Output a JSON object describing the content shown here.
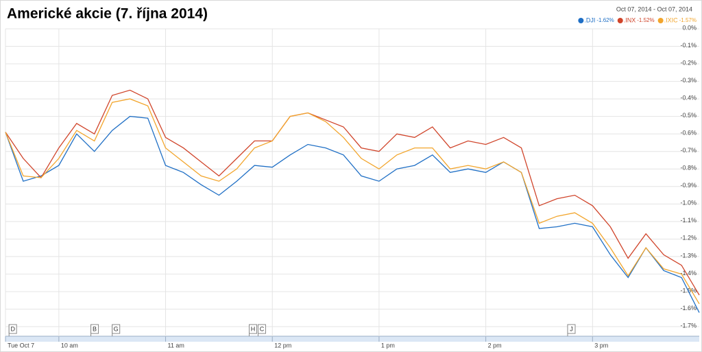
{
  "chart_data": {
    "type": "line",
    "title": "Americké akcie (7. října 2014)",
    "subtitle": "Oct 07, 2014  -  Oct 07, 2014",
    "x": [
      570,
      580,
      590,
      600,
      610,
      620,
      630,
      640,
      650,
      660,
      670,
      680,
      690,
      700,
      710,
      720,
      730,
      740,
      750,
      760,
      770,
      780,
      790,
      800,
      810,
      820,
      830,
      840,
      850,
      860,
      870,
      880,
      890,
      900,
      910,
      920,
      930,
      940,
      950,
      960
    ],
    "xlim": [
      570,
      960
    ],
    "xticks": [
      {
        "value": 570,
        "label": "Tue Oct 7"
      },
      {
        "value": 600,
        "label": "10 am"
      },
      {
        "value": 660,
        "label": "11 am"
      },
      {
        "value": 720,
        "label": "12 pm"
      },
      {
        "value": 780,
        "label": "1 pm"
      },
      {
        "value": 840,
        "label": "2 pm"
      },
      {
        "value": 900,
        "label": "3 pm"
      }
    ],
    "ylim": [
      0,
      -1.7
    ],
    "yticks": [
      {
        "value": 0,
        "label": "0.0%"
      },
      {
        "value": -0.1,
        "label": "-0.1%"
      },
      {
        "value": -0.2,
        "label": "-0.2%"
      },
      {
        "value": -0.3,
        "label": "-0.3%"
      },
      {
        "value": -0.4,
        "label": "-0.4%"
      },
      {
        "value": -0.5,
        "label": "-0.5%"
      },
      {
        "value": -0.6,
        "label": "-0.6%"
      },
      {
        "value": -0.7,
        "label": "-0.7%"
      },
      {
        "value": -0.8,
        "label": "-0.8%"
      },
      {
        "value": -0.9,
        "label": "-0.9%"
      },
      {
        "value": -1.0,
        "label": "-1.0%"
      },
      {
        "value": -1.1,
        "label": "-1.1%"
      },
      {
        "value": -1.2,
        "label": "-1.2%"
      },
      {
        "value": -1.3,
        "label": "-1.3%"
      },
      {
        "value": -1.4,
        "label": "-1.4%"
      },
      {
        "value": -1.5,
        "label": "-1.5%"
      },
      {
        "value": -1.6,
        "label": "-1.6%"
      },
      {
        "value": -1.7,
        "label": "-1.7%"
      }
    ],
    "grid": true,
    "series": [
      {
        "name": ".DJI",
        "change": "-1.62%",
        "color": "#1f6fc5",
        "values": [
          -0.59,
          -0.87,
          -0.84,
          -0.78,
          -0.6,
          -0.7,
          -0.58,
          -0.5,
          -0.51,
          -0.78,
          -0.82,
          -0.89,
          -0.95,
          -0.87,
          -0.78,
          -0.79,
          -0.72,
          -0.66,
          -0.68,
          -0.72,
          -0.84,
          -0.87,
          -0.8,
          -0.78,
          -0.72,
          -0.82,
          -0.8,
          -0.82,
          -0.76,
          -0.82,
          -1.14,
          -1.13,
          -1.11,
          -1.13,
          -1.29,
          -1.42,
          -1.25,
          -1.38,
          -1.42,
          -1.62
        ]
      },
      {
        "name": ".INX",
        "change": "-1.52%",
        "color": "#d0442a",
        "values": [
          -0.59,
          -0.74,
          -0.85,
          -0.68,
          -0.54,
          -0.6,
          -0.38,
          -0.35,
          -0.4,
          -0.62,
          -0.68,
          -0.76,
          -0.84,
          -0.74,
          -0.64,
          -0.64,
          -0.5,
          -0.48,
          -0.52,
          -0.56,
          -0.68,
          -0.7,
          -0.6,
          -0.62,
          -0.56,
          -0.68,
          -0.64,
          -0.66,
          -0.62,
          -0.68,
          -1.01,
          -0.97,
          -0.95,
          -1.01,
          -1.13,
          -1.31,
          -1.17,
          -1.29,
          -1.35,
          -1.52
        ]
      },
      {
        "name": ".IXIC",
        "change": "-1.57%",
        "color": "#f2a52c",
        "values": [
          -0.59,
          -0.84,
          -0.85,
          -0.74,
          -0.58,
          -0.64,
          -0.42,
          -0.4,
          -0.44,
          -0.68,
          -0.76,
          -0.84,
          -0.87,
          -0.8,
          -0.68,
          -0.64,
          -0.5,
          -0.48,
          -0.53,
          -0.62,
          -0.74,
          -0.8,
          -0.72,
          -0.68,
          -0.68,
          -0.8,
          -0.78,
          -0.8,
          -0.76,
          -0.82,
          -1.11,
          -1.07,
          -1.05,
          -1.11,
          -1.25,
          -1.41,
          -1.25,
          -1.37,
          -1.4,
          -1.57
        ]
      }
    ],
    "annotations": [
      {
        "label": "D",
        "x": 572
      },
      {
        "label": "B",
        "x": 618
      },
      {
        "label": "G",
        "x": 630
      },
      {
        "label": "H",
        "x": 707
      },
      {
        "label": "C",
        "x": 712
      },
      {
        "label": "J",
        "x": 886
      }
    ]
  }
}
